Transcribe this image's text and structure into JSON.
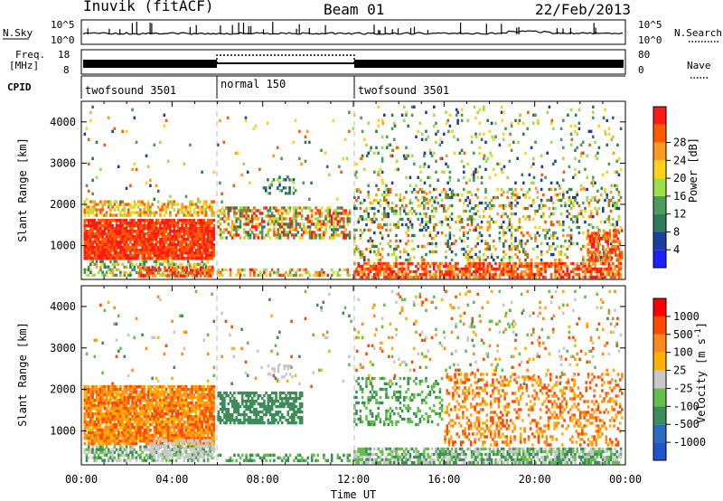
{
  "header": {
    "station": "Inuvik (fitACF)",
    "beam": "Beam 01",
    "date": "22/Feb/2013"
  },
  "panels": {
    "nsky": {
      "label": "N.Sky",
      "left_ticks": [
        "10^5",
        "10^0"
      ],
      "right_ticks": [
        "10^5",
        "10^0"
      ],
      "right_label": "N.Search"
    },
    "freq": {
      "label_line1": "Freq.",
      "label_line2": "[MHz]",
      "left_ticks": [
        "18",
        "8"
      ],
      "right_ticks": [
        "80",
        "0"
      ],
      "right_label": "Nave"
    },
    "cpid": {
      "label": "CPID",
      "segments": [
        {
          "name": "twofsound 3501",
          "start_hour": 0,
          "end_hour": 6
        },
        {
          "name": "normal 150",
          "start_hour": 6,
          "end_hour": 12
        },
        {
          "name": "twofsound 3501",
          "start_hour": 12,
          "end_hour": 24
        }
      ]
    }
  },
  "colors": {
    "power": [
      "#1f1fff",
      "#1d3fa0",
      "#2f7a57",
      "#4e9a5a",
      "#9be04a",
      "#ffd21a",
      "#ff9a1a",
      "#ff5a00",
      "#ff1a1a"
    ],
    "velocity": [
      "#2255cc",
      "#2a6cc0",
      "#3e8c5a",
      "#62c04a",
      "#c8c8c8",
      "#ffb000",
      "#ff8a1a",
      "#ff4a00",
      "#ff0000"
    ]
  },
  "chart_data": [
    {
      "type": "heatmap",
      "title": "",
      "xlabel": "Time UT",
      "ylabel": "Slant Range [km]",
      "xlim_hours": [
        0,
        24
      ],
      "ylim_km": [
        180,
        4500
      ],
      "x_ticks": [
        "00:00",
        "04:00",
        "08:00",
        "12:00",
        "16:00",
        "20:00",
        "00:00"
      ],
      "y_ticks": [
        1000,
        2000,
        3000,
        4000
      ],
      "colorbar": {
        "label": "Power [dB]",
        "ticks": [
          4,
          8,
          12,
          16,
          20,
          24,
          28
        ],
        "range": [
          0,
          30
        ]
      }
    },
    {
      "type": "heatmap",
      "title": "",
      "xlabel": "Time UT",
      "ylabel": "Slant Range [km]",
      "xlim_hours": [
        0,
        24
      ],
      "ylim_km": [
        180,
        4500
      ],
      "x_ticks": [
        "00:00",
        "04:00",
        "08:00",
        "12:00",
        "16:00",
        "20:00",
        "00:00"
      ],
      "y_ticks": [
        1000,
        2000,
        3000,
        4000
      ],
      "colorbar": {
        "label": "Velocity [m s^-1]",
        "ticks": [
          1000,
          500,
          100,
          25,
          -25,
          -100,
          -500,
          -1000
        ],
        "range": [
          -1000,
          1000
        ]
      }
    }
  ]
}
